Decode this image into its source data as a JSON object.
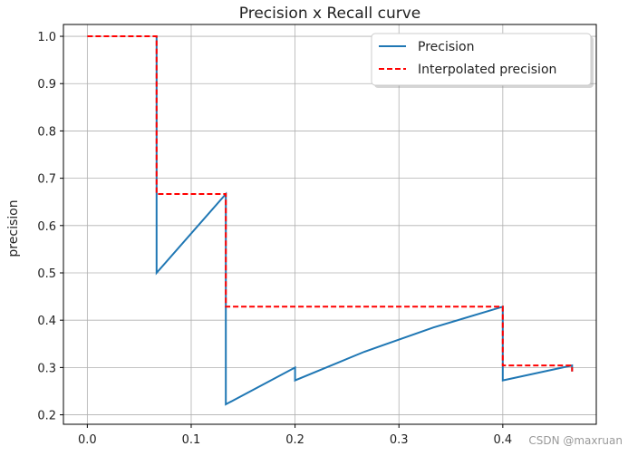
{
  "chart_data": {
    "type": "line",
    "title": "Precision x Recall curve",
    "xlabel": "",
    "ylabel": "precision",
    "xlim": [
      -0.023,
      0.49
    ],
    "ylim": [
      0.18,
      1.025
    ],
    "grid": true,
    "legend_position": "top-right",
    "x_ticks": [
      0.0,
      0.1,
      0.2,
      0.3,
      0.4
    ],
    "x_tick_labels": [
      "0.0",
      "0.1",
      "0.2",
      "0.3",
      "0.4"
    ],
    "y_ticks": [
      0.2,
      0.3,
      0.4,
      0.5,
      0.6,
      0.7,
      0.8,
      0.9,
      1.0
    ],
    "y_tick_labels": [
      "0.2",
      "0.3",
      "0.4",
      "0.5",
      "0.6",
      "0.7",
      "0.8",
      "0.9",
      "1.0"
    ],
    "series": [
      {
        "name": "Precision",
        "color": "#1f77b4",
        "style": "solid",
        "x": [
          0.0667,
          0.0667,
          0.1333,
          0.1333,
          0.2,
          0.2,
          0.2667,
          0.3333,
          0.4,
          0.4,
          0.4667,
          0.4667
        ],
        "y": [
          1.0,
          0.5,
          0.6667,
          0.2222,
          0.3,
          0.2727,
          0.3333,
          0.3846,
          0.4286,
          0.2727,
          0.3043,
          0.2917
        ]
      },
      {
        "name": "Interpolated precision",
        "color": "#ff0000",
        "style": "dashed",
        "x": [
          0.0,
          0.0667,
          0.0667,
          0.1333,
          0.1333,
          0.4,
          0.4,
          0.4667,
          0.4667
        ],
        "y": [
          1.0,
          1.0,
          0.6667,
          0.6667,
          0.4286,
          0.4286,
          0.3043,
          0.3043,
          0.2917
        ]
      }
    ]
  },
  "watermark": "CSDN @maxruan"
}
